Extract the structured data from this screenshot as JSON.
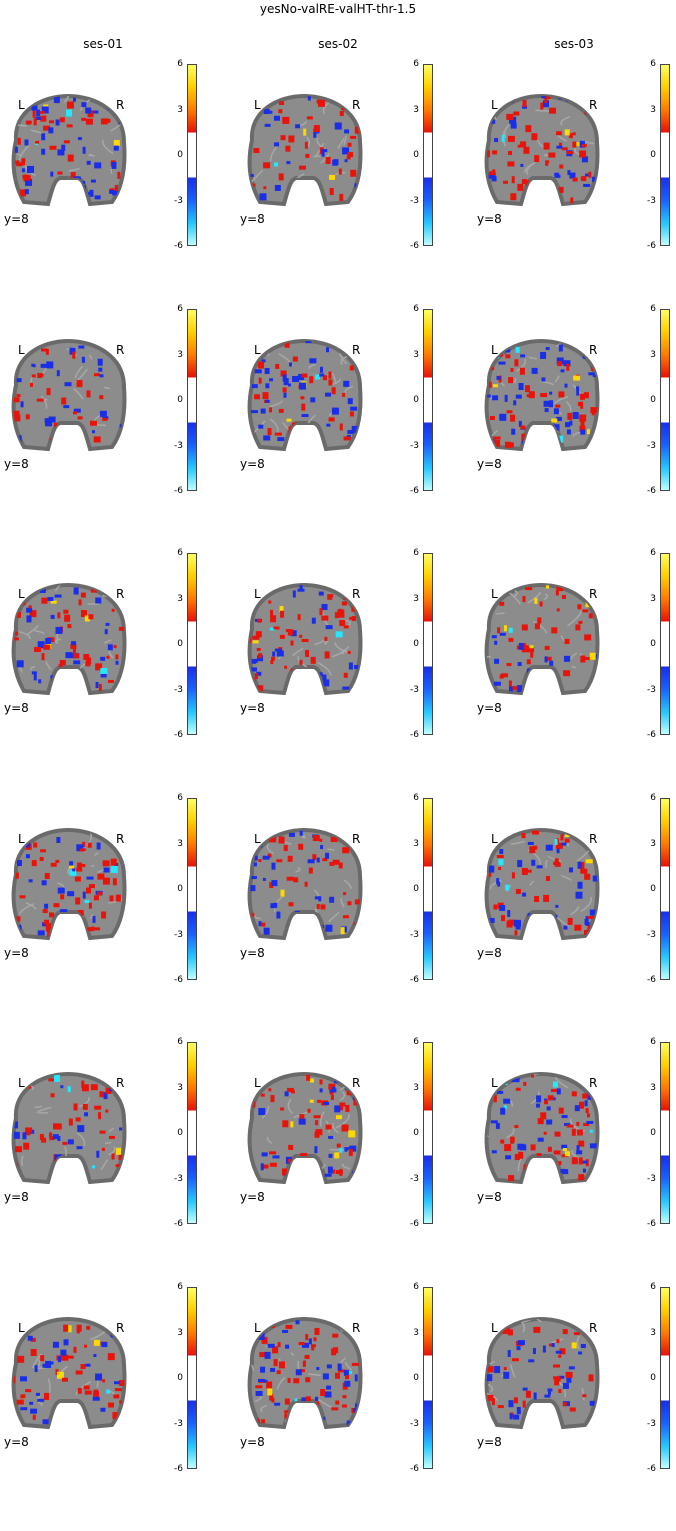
{
  "figure": {
    "title": "yesNo-valRE-valHT-thr-1.5",
    "columns": [
      "ses-01",
      "ses-02",
      "ses-03"
    ],
    "rows": 6,
    "slice_label": "y=8",
    "left_label": "L",
    "right_label": "R",
    "colorbar_ticks": [
      "6",
      "3",
      "0",
      "-3",
      "-6"
    ],
    "threshold": 1.5,
    "colors": {
      "background": "#ffffff",
      "brain": "#8c8c8c",
      "brain_edge": "#6a6a6a",
      "positive": "#e8140a",
      "positive_high": "#ffd800",
      "negative": "#1a2ee8",
      "negative_high": "#25e8ff"
    }
  }
}
